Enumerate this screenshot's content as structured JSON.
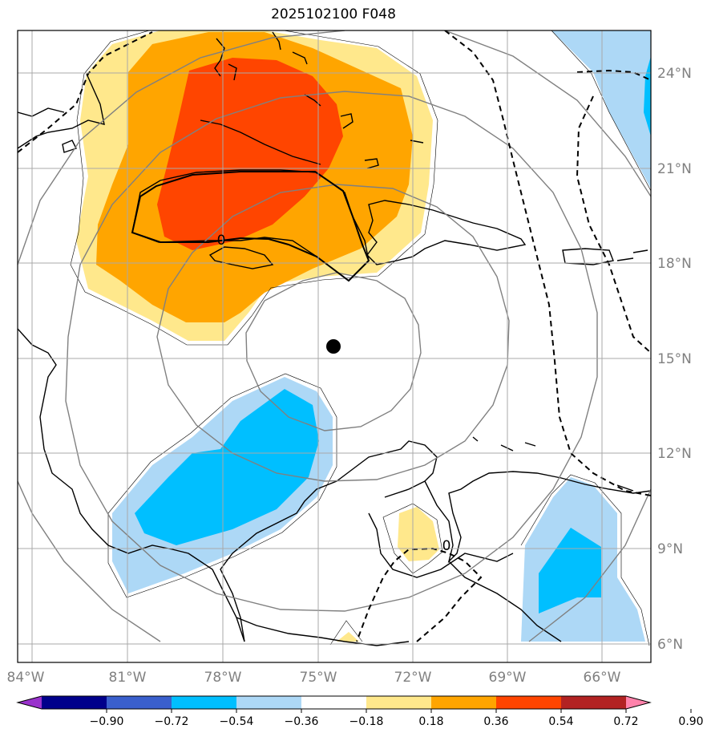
{
  "title": "2025102100 F048",
  "chart_data": {
    "type": "heatmap",
    "title": "2025102100 F048",
    "map_extent": {
      "lon_min": -85.0,
      "lon_max": -65.0,
      "lat_min": 5.6,
      "lat_max": 25.0
    },
    "longitude_ticks": [
      "84°W",
      "81°W",
      "78°W",
      "75°W",
      "72°W",
      "69°W",
      "66°W"
    ],
    "latitude_ticks": [
      "24°N",
      "21°N",
      "18°N",
      "15°N",
      "12°N",
      "9°N",
      "6°N"
    ],
    "center_marker": {
      "lon": -74.5,
      "lat": 15.3
    },
    "contour_labels": [
      "0",
      "0"
    ],
    "colorbar": {
      "levels": [
        -0.9,
        -0.72,
        -0.54,
        -0.36,
        -0.18,
        0.18,
        0.36,
        0.54,
        0.72,
        0.9
      ],
      "tick_labels": [
        "−0.90",
        "−0.72",
        "−0.54",
        "−0.36",
        "−0.18",
        "0.18",
        "0.36",
        "0.54",
        "0.72",
        "0.90"
      ],
      "colors": [
        "#9932cc",
        "#00008b",
        "#3a5fcd",
        "#00bfff",
        "#add8f6",
        "#ffffff",
        "#ffe88c",
        "#ffa500",
        "#ff4500",
        "#b22222",
        "#ff82ab"
      ],
      "extend": "both"
    },
    "grid": true
  }
}
